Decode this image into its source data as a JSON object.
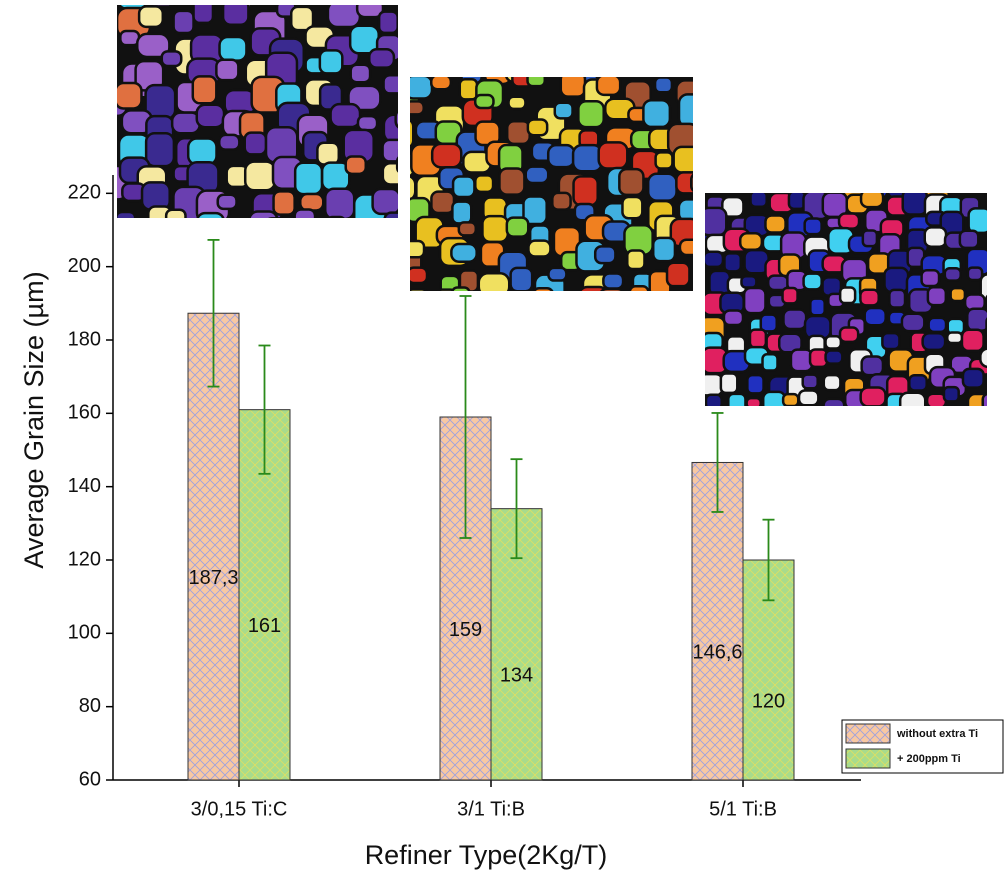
{
  "chart_data": {
    "type": "bar",
    "x_label": "Refiner Type(2Kg/T)",
    "y_label": "Average Grain Size (µm)",
    "categories": [
      "3/0,15 Ti:C",
      "3/1 Ti:B",
      "5/1 Ti:B"
    ],
    "series": [
      {
        "name": "without extra Ti",
        "color": "#f8c8a2",
        "values": [
          187.3,
          159,
          146.6
        ],
        "value_labels": [
          "187,3",
          "159",
          "146,6"
        ],
        "errors": [
          20,
          33,
          13.5
        ]
      },
      {
        "name": "+ 200ppm Ti",
        "color": "#a8dc8c",
        "values": [
          161,
          134,
          120
        ],
        "errors": [
          17.5,
          13.5,
          11
        ]
      }
    ],
    "error_color": "#2a8a1a",
    "ylim": [
      60,
      225
    ],
    "yticks": [
      60,
      80,
      100,
      120,
      140,
      160,
      180,
      200,
      220
    ],
    "legend": "lower right"
  }
}
